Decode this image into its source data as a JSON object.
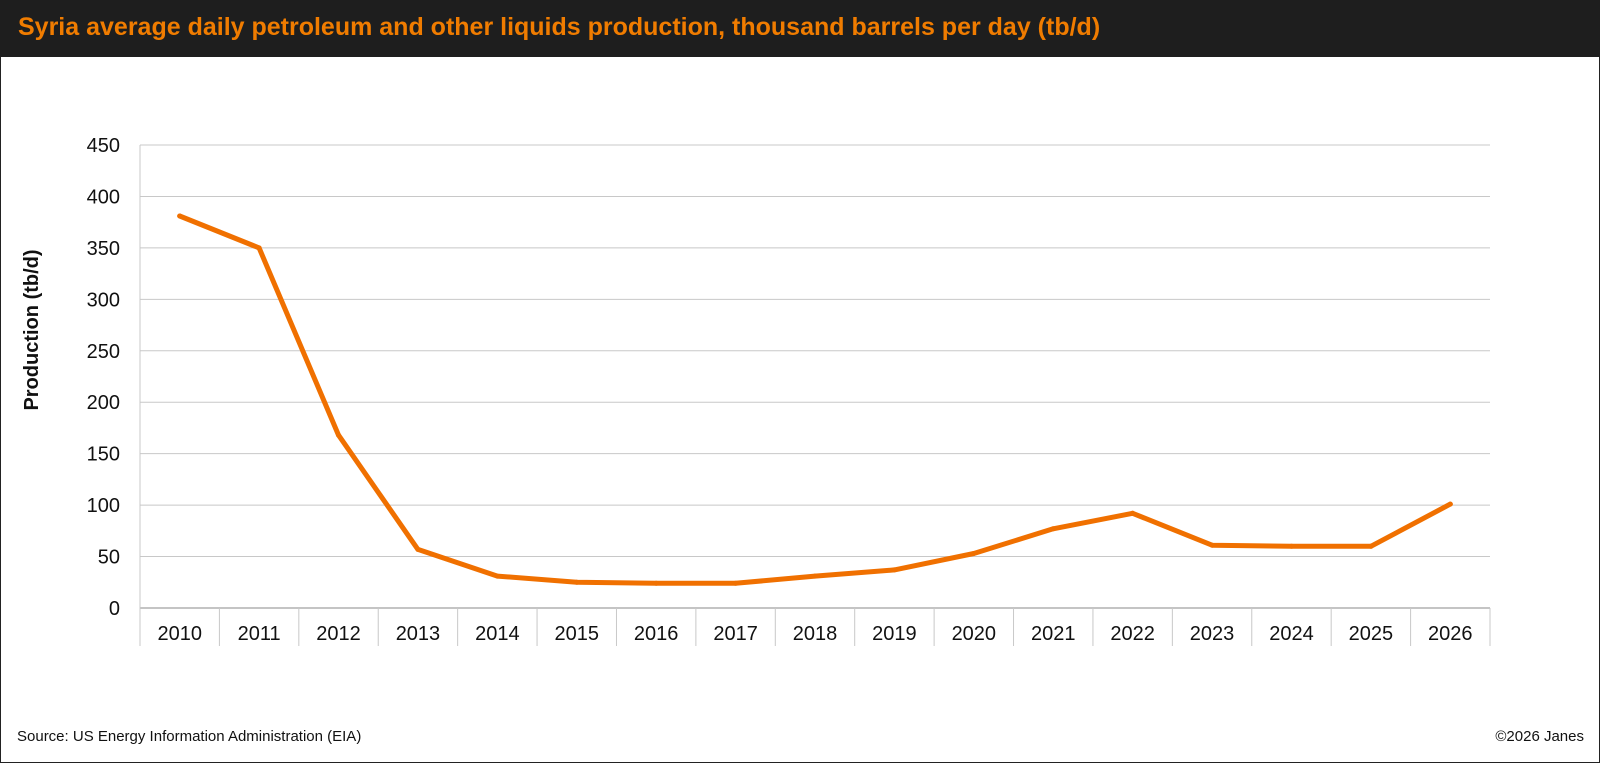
{
  "title": "Syria average daily petroleum and other liquids production, thousand barrels per day (tb/d)",
  "source": "Source: US Energy Information Administration (EIA)",
  "copyright": "©2026 Janes",
  "colors": {
    "line": "#f07000",
    "title": "#f07c00",
    "title_bar": "#1e1e1e",
    "grid": "#c8c8c8"
  },
  "chart_data": {
    "type": "line",
    "title": "Syria average daily petroleum and other liquids production, thousand barrels per day (tb/d)",
    "xlabel": "",
    "ylabel": "Production (tb/d)",
    "ylim": [
      0,
      450
    ],
    "yticks": [
      0,
      50,
      100,
      150,
      200,
      250,
      300,
      350,
      400,
      450
    ],
    "grid": true,
    "legend": "none",
    "categories": [
      "2010",
      "2011",
      "2012",
      "2013",
      "2014",
      "2015",
      "2016",
      "2017",
      "2018",
      "2019",
      "2020",
      "2021",
      "2022",
      "2023",
      "2024",
      "2025",
      "2026"
    ],
    "series": [
      {
        "values": [
          381,
          350,
          168,
          57,
          31,
          25,
          24,
          24,
          31,
          37,
          53,
          77,
          92,
          61,
          60,
          60,
          101
        ]
      }
    ]
  }
}
